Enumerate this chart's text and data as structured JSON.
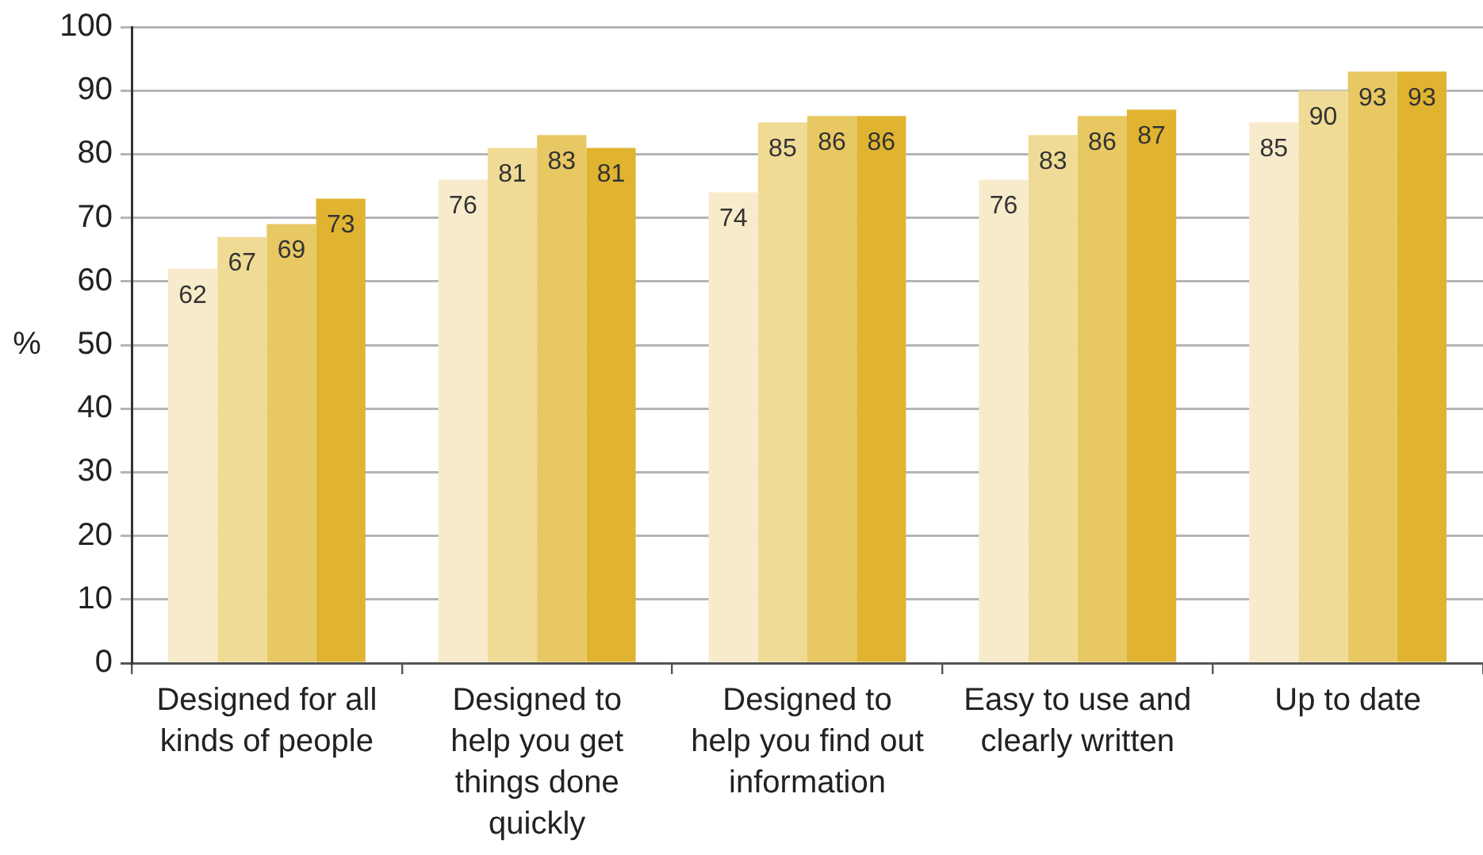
{
  "chart_data": {
    "type": "bar",
    "ylabel": "%",
    "categories": [
      "Designed for all kinds of people",
      "Designed to help you get things done quickly",
      "Designed to help you find out information",
      "Easy to use and clearly written",
      "Up to date"
    ],
    "series": [
      {
        "color": "#f7ebcb",
        "values": [
          62,
          76,
          74,
          76,
          85
        ]
      },
      {
        "color": "#f0db96",
        "values": [
          67,
          81,
          85,
          83,
          90
        ]
      },
      {
        "color": "#e8c862",
        "values": [
          69,
          83,
          86,
          86,
          93
        ]
      },
      {
        "color": "#e0b431",
        "values": [
          73,
          81,
          86,
          87,
          93
        ]
      }
    ],
    "ylim": [
      0,
      100
    ],
    "yticks": [
      0,
      10,
      20,
      30,
      40,
      50,
      60,
      70,
      80,
      90,
      100
    ],
    "grid": "y",
    "legend": false,
    "data_labels": true
  }
}
